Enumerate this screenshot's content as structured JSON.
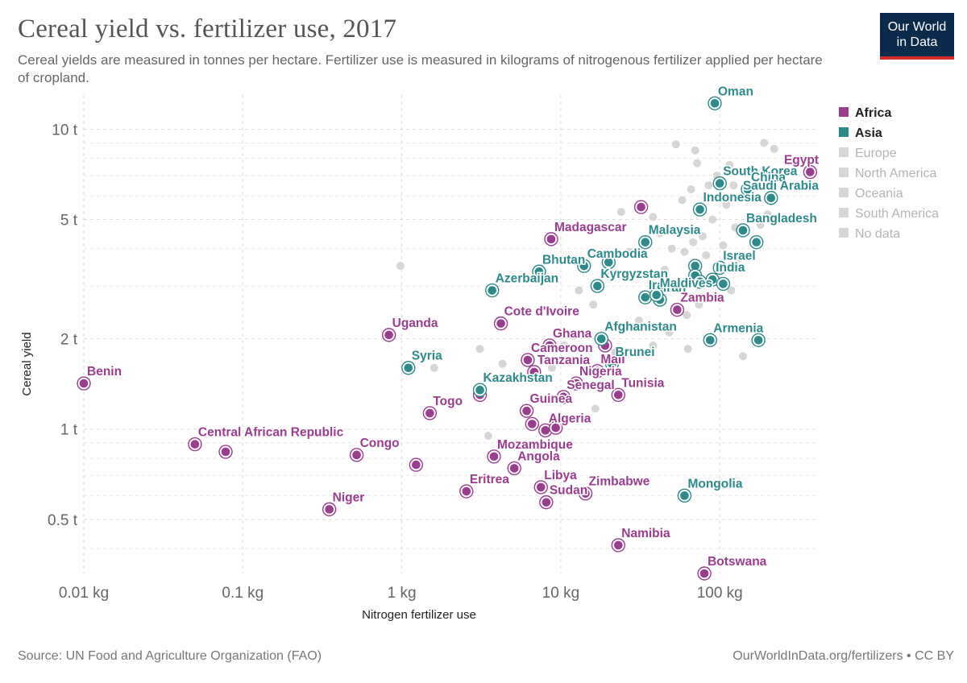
{
  "title": "Cereal yield vs. fertilizer use, 2017",
  "subtitle": "Cereal yields are measured in tonnes per hectare. Fertilizer use is measured in kilograms of nitrogenous fertilizer applied per hectare of cropland.",
  "logo": {
    "line1": "Our World",
    "line2": "in Data"
  },
  "source": "Source: UN Food and Agriculture Organization (FAO)",
  "license": "OurWorldInData.org/fertilizers • CC BY",
  "colors": {
    "Africa": "#9a3d8e",
    "Asia": "#2d8a8a",
    "other": "#d6d6d6",
    "other_text": "#b5b5b5",
    "grid": "#dddddd"
  },
  "chart_data": {
    "type": "scatter",
    "title": "Cereal yield vs. fertilizer use, 2017",
    "xlabel": "Nitrogen fertilizer use",
    "ylabel": "Cereal yield",
    "x_scale": "log",
    "y_scale": "log",
    "xlim": [
      0.01,
      400
    ],
    "ylim": [
      0.33,
      13
    ],
    "x_ticks": [
      {
        "value": 0.01,
        "label": "0.01 kg"
      },
      {
        "value": 0.1,
        "label": "0.1 kg"
      },
      {
        "value": 1,
        "label": "1 kg"
      },
      {
        "value": 10,
        "label": "10 kg"
      },
      {
        "value": 100,
        "label": "100 kg"
      }
    ],
    "y_ticks": [
      {
        "value": 0.5,
        "label": "0.5 t"
      },
      {
        "value": 1,
        "label": "1 t"
      },
      {
        "value": 2,
        "label": "2 t"
      },
      {
        "value": 5,
        "label": "5 t"
      },
      {
        "value": 10,
        "label": "10 t"
      }
    ],
    "grid": true,
    "legend_position": "right",
    "legend": [
      {
        "name": "Africa",
        "active": true
      },
      {
        "name": "Asia",
        "active": true
      },
      {
        "name": "Europe",
        "active": false
      },
      {
        "name": "North America",
        "active": false
      },
      {
        "name": "Oceania",
        "active": false
      },
      {
        "name": "South America",
        "active": false
      },
      {
        "name": "No data",
        "active": false
      }
    ],
    "points": [
      {
        "label": "Benin",
        "region": "Africa",
        "x": 0.01,
        "y": 1.42
      },
      {
        "label": "Central African Republic",
        "region": "Africa",
        "x": 0.05,
        "y": 0.89
      },
      {
        "label": "",
        "region": "Africa",
        "x": 0.078,
        "y": 0.84
      },
      {
        "label": "Congo",
        "region": "Africa",
        "x": 0.52,
        "y": 0.82
      },
      {
        "label": "Niger",
        "region": "Africa",
        "x": 0.35,
        "y": 0.54
      },
      {
        "label": "Uganda",
        "region": "Africa",
        "x": 0.83,
        "y": 2.06
      },
      {
        "label": "",
        "region": "Africa",
        "x": 1.23,
        "y": 0.76
      },
      {
        "label": "Togo",
        "region": "Africa",
        "x": 1.5,
        "y": 1.13
      },
      {
        "label": "Eritrea",
        "region": "Africa",
        "x": 2.55,
        "y": 0.62
      },
      {
        "label": "",
        "region": "Africa",
        "x": 3.1,
        "y": 1.3
      },
      {
        "label": "Cote d'Ivoire",
        "region": "Africa",
        "x": 4.2,
        "y": 2.25
      },
      {
        "label": "Mozambique",
        "region": "Africa",
        "x": 3.8,
        "y": 0.81
      },
      {
        "label": "Angola",
        "region": "Africa",
        "x": 5.1,
        "y": 0.74
      },
      {
        "label": "Guinea",
        "region": "Africa",
        "x": 6.1,
        "y": 1.15
      },
      {
        "label": "",
        "region": "Africa",
        "x": 6.6,
        "y": 1.04
      },
      {
        "label": "Cameroon",
        "region": "Africa",
        "x": 6.2,
        "y": 1.7
      },
      {
        "label": "Tanzania",
        "region": "Africa",
        "x": 6.8,
        "y": 1.55
      },
      {
        "label": "Algeria",
        "region": "Africa",
        "x": 8.0,
        "y": 0.99
      },
      {
        "label": "",
        "region": "Africa",
        "x": 9.3,
        "y": 1.01
      },
      {
        "label": "Libya",
        "region": "Africa",
        "x": 7.5,
        "y": 0.64
      },
      {
        "label": "Sudan",
        "region": "Africa",
        "x": 8.1,
        "y": 0.57
      },
      {
        "label": "Madagascar",
        "region": "Africa",
        "x": 8.7,
        "y": 4.3
      },
      {
        "label": "Ghana",
        "region": "Africa",
        "x": 8.5,
        "y": 1.9
      },
      {
        "label": "Senegal",
        "region": "Africa",
        "x": 10.4,
        "y": 1.28
      },
      {
        "label": "Nigeria",
        "region": "Africa",
        "x": 12.5,
        "y": 1.42
      },
      {
        "label": "Zimbabwe",
        "region": "Africa",
        "x": 14.3,
        "y": 0.61
      },
      {
        "label": "Mali",
        "region": "Africa",
        "x": 17.0,
        "y": 1.56
      },
      {
        "label": "",
        "region": "Africa",
        "x": 19.0,
        "y": 1.9
      },
      {
        "label": "Tunisia",
        "region": "Africa",
        "x": 23.0,
        "y": 1.3
      },
      {
        "label": "Namibia",
        "region": "Africa",
        "x": 23.0,
        "y": 0.41
      },
      {
        "label": "",
        "region": "Africa",
        "x": 32.0,
        "y": 5.5
      },
      {
        "label": "Zambia",
        "region": "Africa",
        "x": 54.0,
        "y": 2.5
      },
      {
        "label": "Botswana",
        "region": "Africa",
        "x": 80.0,
        "y": 0.33
      },
      {
        "label": "Egypt",
        "region": "Africa",
        "x": 370.0,
        "y": 7.2
      },
      {
        "label": "Syria",
        "region": "Asia",
        "x": 1.1,
        "y": 1.6
      },
      {
        "label": "Kazakhstan",
        "region": "Asia",
        "x": 3.1,
        "y": 1.35
      },
      {
        "label": "Azerbaijan",
        "region": "Asia",
        "x": 3.7,
        "y": 2.9
      },
      {
        "label": "Bhutan",
        "region": "Asia",
        "x": 7.3,
        "y": 3.35
      },
      {
        "label": "Cambodia",
        "region": "Asia",
        "x": 14.0,
        "y": 3.5
      },
      {
        "label": "",
        "region": "Asia",
        "x": 20.0,
        "y": 3.6
      },
      {
        "label": "Kyrgyzstan",
        "region": "Asia",
        "x": 17.0,
        "y": 3.0
      },
      {
        "label": "Afghanistan",
        "region": "Asia",
        "x": 18.0,
        "y": 2.0
      },
      {
        "label": "Brunei",
        "region": "Asia",
        "x": 21.0,
        "y": 1.65
      },
      {
        "label": "Malaysia",
        "region": "Asia",
        "x": 34.0,
        "y": 4.2
      },
      {
        "label": "Iraq",
        "region": "Asia",
        "x": 34.0,
        "y": 2.75
      },
      {
        "label": "Iran",
        "region": "Asia",
        "x": 42.0,
        "y": 2.7
      },
      {
        "label": "Maldives",
        "region": "Asia",
        "x": 40.0,
        "y": 2.8
      },
      {
        "label": "Oman",
        "region": "Asia",
        "x": 93.0,
        "y": 12.2
      },
      {
        "label": "South Korea",
        "region": "Asia",
        "x": 100.0,
        "y": 6.6
      },
      {
        "label": "China",
        "region": "Asia",
        "x": 150.0,
        "y": 6.3
      },
      {
        "label": "Saudi Arabia",
        "region": "Asia",
        "x": 210.0,
        "y": 5.9
      },
      {
        "label": "Indonesia",
        "region": "Asia",
        "x": 75.0,
        "y": 5.4
      },
      {
        "label": "Bangladesh",
        "region": "Asia",
        "x": 140.0,
        "y": 4.6
      },
      {
        "label": "",
        "region": "Asia",
        "x": 170.0,
        "y": 4.2
      },
      {
        "label": "Israel",
        "region": "Asia",
        "x": 100.0,
        "y": 3.45
      },
      {
        "label": "",
        "region": "Asia",
        "x": 70.0,
        "y": 3.5
      },
      {
        "label": "",
        "region": "Asia",
        "x": 70.0,
        "y": 3.25
      },
      {
        "label": "India",
        "region": "Asia",
        "x": 90.0,
        "y": 3.15
      },
      {
        "label": "",
        "region": "Asia",
        "x": 75.0,
        "y": 3.1
      },
      {
        "label": "",
        "region": "Asia",
        "x": 105.0,
        "y": 3.05
      },
      {
        "label": "Armenia",
        "region": "Asia",
        "x": 87.0,
        "y": 1.98
      },
      {
        "label": "",
        "region": "Asia",
        "x": 175.0,
        "y": 1.98
      },
      {
        "label": "Mongolia",
        "region": "Asia",
        "x": 60.0,
        "y": 0.6
      },
      {
        "label": "",
        "region": "other",
        "x": 0.98,
        "y": 3.5
      },
      {
        "label": "",
        "region": "other",
        "x": 1.6,
        "y": 1.6
      },
      {
        "label": "",
        "region": "other",
        "x": 3.1,
        "y": 1.85
      },
      {
        "label": "",
        "region": "other",
        "x": 3.5,
        "y": 0.95
      },
      {
        "label": "",
        "region": "other",
        "x": 4.3,
        "y": 1.65
      },
      {
        "label": "",
        "region": "other",
        "x": 8.8,
        "y": 1.6
      },
      {
        "label": "",
        "region": "other",
        "x": 10.5,
        "y": 1.9
      },
      {
        "label": "",
        "region": "other",
        "x": 12.0,
        "y": 2.05
      },
      {
        "label": "",
        "region": "other",
        "x": 13.0,
        "y": 2.9
      },
      {
        "label": "",
        "region": "other",
        "x": 16.0,
        "y": 2.6
      },
      {
        "label": "",
        "region": "other",
        "x": 16.5,
        "y": 1.17
      },
      {
        "label": "",
        "region": "other",
        "x": 19.0,
        "y": 3.3
      },
      {
        "label": "",
        "region": "other",
        "x": 22.0,
        "y": 1.8
      },
      {
        "label": "",
        "region": "other",
        "x": 24.0,
        "y": 5.3
      },
      {
        "label": "",
        "region": "other",
        "x": 27.0,
        "y": 3.9
      },
      {
        "label": "",
        "region": "other",
        "x": 31.0,
        "y": 2.3
      },
      {
        "label": "",
        "region": "other",
        "x": 38.0,
        "y": 5.1
      },
      {
        "label": "",
        "region": "other",
        "x": 38.0,
        "y": 1.9
      },
      {
        "label": "",
        "region": "other",
        "x": 42.0,
        "y": 4.5
      },
      {
        "label": "",
        "region": "other",
        "x": 45.0,
        "y": 3.4
      },
      {
        "label": "",
        "region": "other",
        "x": 48.0,
        "y": 2.1
      },
      {
        "label": "",
        "region": "other",
        "x": 50.0,
        "y": 4.0
      },
      {
        "label": "",
        "region": "other",
        "x": 53.0,
        "y": 8.9
      },
      {
        "label": "",
        "region": "other",
        "x": 53.0,
        "y": 3.0
      },
      {
        "label": "",
        "region": "other",
        "x": 55.0,
        "y": 4.6
      },
      {
        "label": "",
        "region": "other",
        "x": 58.0,
        "y": 5.8
      },
      {
        "label": "",
        "region": "other",
        "x": 60.0,
        "y": 3.9
      },
      {
        "label": "",
        "region": "other",
        "x": 62.0,
        "y": 2.4
      },
      {
        "label": "",
        "region": "other",
        "x": 63.0,
        "y": 1.85
      },
      {
        "label": "",
        "region": "other",
        "x": 66.0,
        "y": 6.3
      },
      {
        "label": "",
        "region": "other",
        "x": 68.0,
        "y": 4.2
      },
      {
        "label": "",
        "region": "other",
        "x": 70.0,
        "y": 8.5
      },
      {
        "label": "",
        "region": "other",
        "x": 72.0,
        "y": 7.7
      },
      {
        "label": "",
        "region": "other",
        "x": 74.0,
        "y": 2.6
      },
      {
        "label": "",
        "region": "other",
        "x": 78.0,
        "y": 4.4
      },
      {
        "label": "",
        "region": "other",
        "x": 82.0,
        "y": 3.8
      },
      {
        "label": "",
        "region": "other",
        "x": 85.0,
        "y": 6.5
      },
      {
        "label": "",
        "region": "other",
        "x": 90.0,
        "y": 5.0
      },
      {
        "label": "",
        "region": "other",
        "x": 96.0,
        "y": 7.0
      },
      {
        "label": "",
        "region": "other",
        "x": 105.0,
        "y": 4.1
      },
      {
        "label": "",
        "region": "other",
        "x": 110.0,
        "y": 5.6
      },
      {
        "label": "",
        "region": "other",
        "x": 115.0,
        "y": 7.6
      },
      {
        "label": "",
        "region": "other",
        "x": 118.0,
        "y": 2.9
      },
      {
        "label": "",
        "region": "other",
        "x": 122.0,
        "y": 6.5
      },
      {
        "label": "",
        "region": "other",
        "x": 125.0,
        "y": 4.7
      },
      {
        "label": "",
        "region": "other",
        "x": 130.0,
        "y": 3.7
      },
      {
        "label": "",
        "region": "other",
        "x": 140.0,
        "y": 1.75
      },
      {
        "label": "",
        "region": "other",
        "x": 150.0,
        "y": 6.1
      },
      {
        "label": "",
        "region": "other",
        "x": 160.0,
        "y": 7.2
      },
      {
        "label": "",
        "region": "other",
        "x": 180.0,
        "y": 4.8
      },
      {
        "label": "",
        "region": "other",
        "x": 190.0,
        "y": 9.0
      },
      {
        "label": "",
        "region": "other",
        "x": 200.0,
        "y": 5.2
      },
      {
        "label": "",
        "region": "other",
        "x": 220.0,
        "y": 8.6
      }
    ]
  }
}
